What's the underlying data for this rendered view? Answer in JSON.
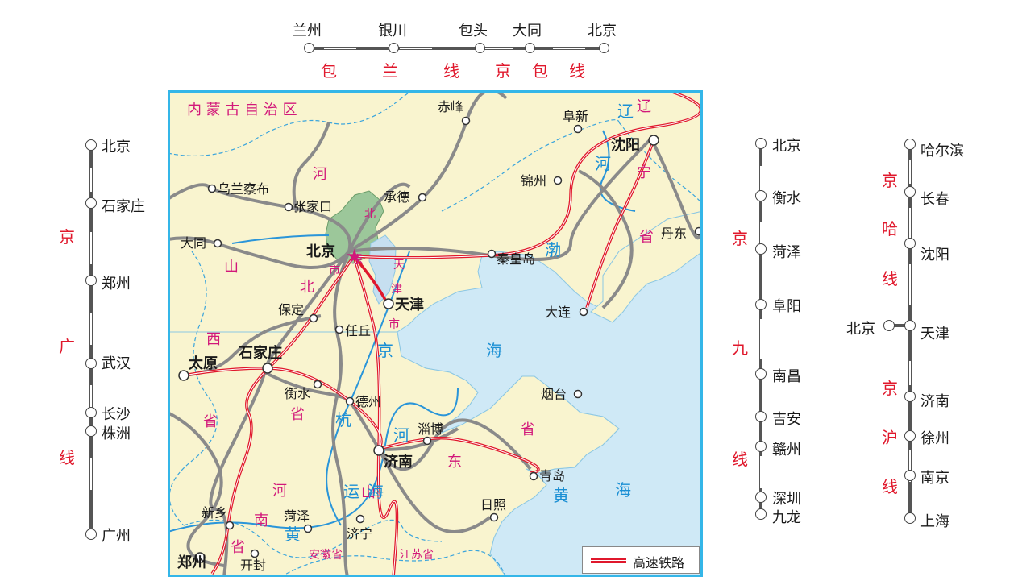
{
  "top_line": {
    "stations": [
      "兰州",
      "银川",
      "包头",
      "大同",
      "北京"
    ],
    "line_labels": [
      "包",
      "兰",
      "线",
      "京",
      "包",
      "线"
    ]
  },
  "left_line": {
    "stations": [
      "北京",
      "石家庄",
      "郑州",
      "武汉",
      "长沙",
      "株洲",
      "广州"
    ],
    "name_chars": [
      "京",
      "广",
      "线"
    ]
  },
  "mid_right_line": {
    "stations": [
      "北京",
      "衡水",
      "菏泽",
      "阜阳",
      "南昌",
      "吉安",
      "赣州",
      "深圳",
      "九龙"
    ],
    "name_chars": [
      "京",
      "九",
      "线"
    ]
  },
  "far_right_line": {
    "stations": [
      "哈尔滨",
      "长春",
      "沈阳",
      "天津",
      "济南",
      "徐州",
      "南京",
      "上海"
    ],
    "branch_station": "北京",
    "upper_name_chars": [
      "京",
      "哈",
      "线"
    ],
    "lower_name_chars": [
      "京",
      "沪",
      "线"
    ]
  },
  "map": {
    "cities": {
      "chifeng": "赤峰",
      "fuxin": "阜新",
      "shenyang": "沈阳",
      "jinzhou": "锦州",
      "wulanchabu": "乌兰察布",
      "zhangjiakou": "张家口",
      "chengde": "承德",
      "datong": "大同",
      "beijing": "北京",
      "qinhuangdao": "秦皇岛",
      "dandong": "丹东",
      "dalian": "大连",
      "baoding": "保定",
      "tianjin": "天津",
      "renqiu": "任丘",
      "taiyuan": "太原",
      "shijiazhuang": "石家庄",
      "hengshui": "衡水",
      "dezhou": "德州",
      "yantai": "烟台",
      "zibo": "淄博",
      "jinan": "济南",
      "qingdao": "青岛",
      "rizhao": "日照",
      "xinxiang": "新乡",
      "heze": "菏泽",
      "jining": "济宁",
      "zhengzhou": "郑州",
      "kaifeng": "开封"
    },
    "regions": {
      "neimenggu": "内 蒙 古 自 治 区",
      "hebei_he": "河",
      "hebei_bei": "北",
      "shanxi_shan": "山",
      "shanxi_xi": "西",
      "shanxi_sheng": "省",
      "hebei_sheng": "省",
      "liaoning_liao": "辽",
      "liaoning_ning": "宁",
      "liaoning_sheng": "省",
      "shandong_shan": "山",
      "shandong_dong": "东",
      "shandong_sheng": "省",
      "henan_he": "河",
      "henan_nan": "南",
      "henan_sheng": "省",
      "anhui": "安徽省",
      "jiangsu": "江苏省",
      "beijing_shi": "京",
      "tianjin_tian": "天",
      "tianjin_jin": "津",
      "tianjin_shi": "市",
      "bei_small": "北",
      "shi_small": "市"
    },
    "waters": {
      "bohai_bo": "渤",
      "bohai_hai": "海",
      "huanghai_huang": "黄",
      "huanghai_hai": "海",
      "huanghe_huang": "黄",
      "huanghe_he": "河",
      "yunhe_yun": "运",
      "jinghang_jing": "京",
      "jinghang_hang": "杭",
      "liaohe": "辽",
      "liaohe_he": "河",
      "hai": "海"
    },
    "legend_label": "高速铁路"
  }
}
